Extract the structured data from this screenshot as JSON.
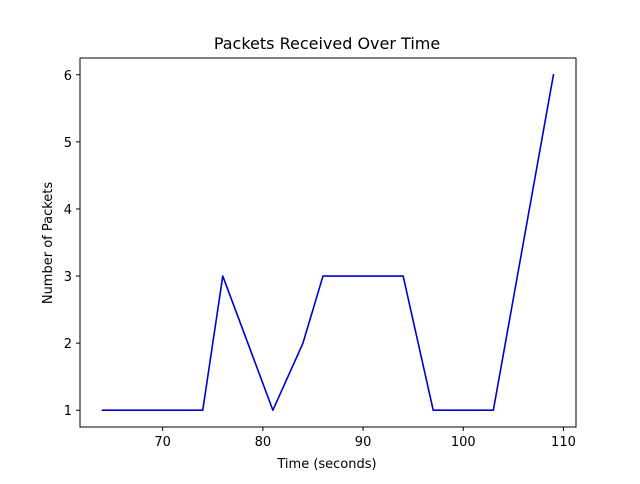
{
  "chart_data": {
    "type": "line",
    "title": "Packets Received Over Time",
    "xlabel": "Time (seconds)",
    "ylabel": "Number of Packets",
    "xlim": [
      61.75,
      111.25
    ],
    "ylim": [
      0.75,
      6.25
    ],
    "xticks": [
      70,
      80,
      90,
      100,
      110
    ],
    "yticks": [
      1,
      2,
      3,
      4,
      5,
      6
    ],
    "grid": false,
    "series": [
      {
        "color": "#0000cc",
        "x": [
          64,
          74,
          76,
          81,
          84,
          86,
          94,
          97,
          103,
          109
        ],
        "y": [
          1,
          1,
          3,
          1,
          2,
          3,
          3,
          1,
          1,
          6
        ]
      }
    ]
  }
}
